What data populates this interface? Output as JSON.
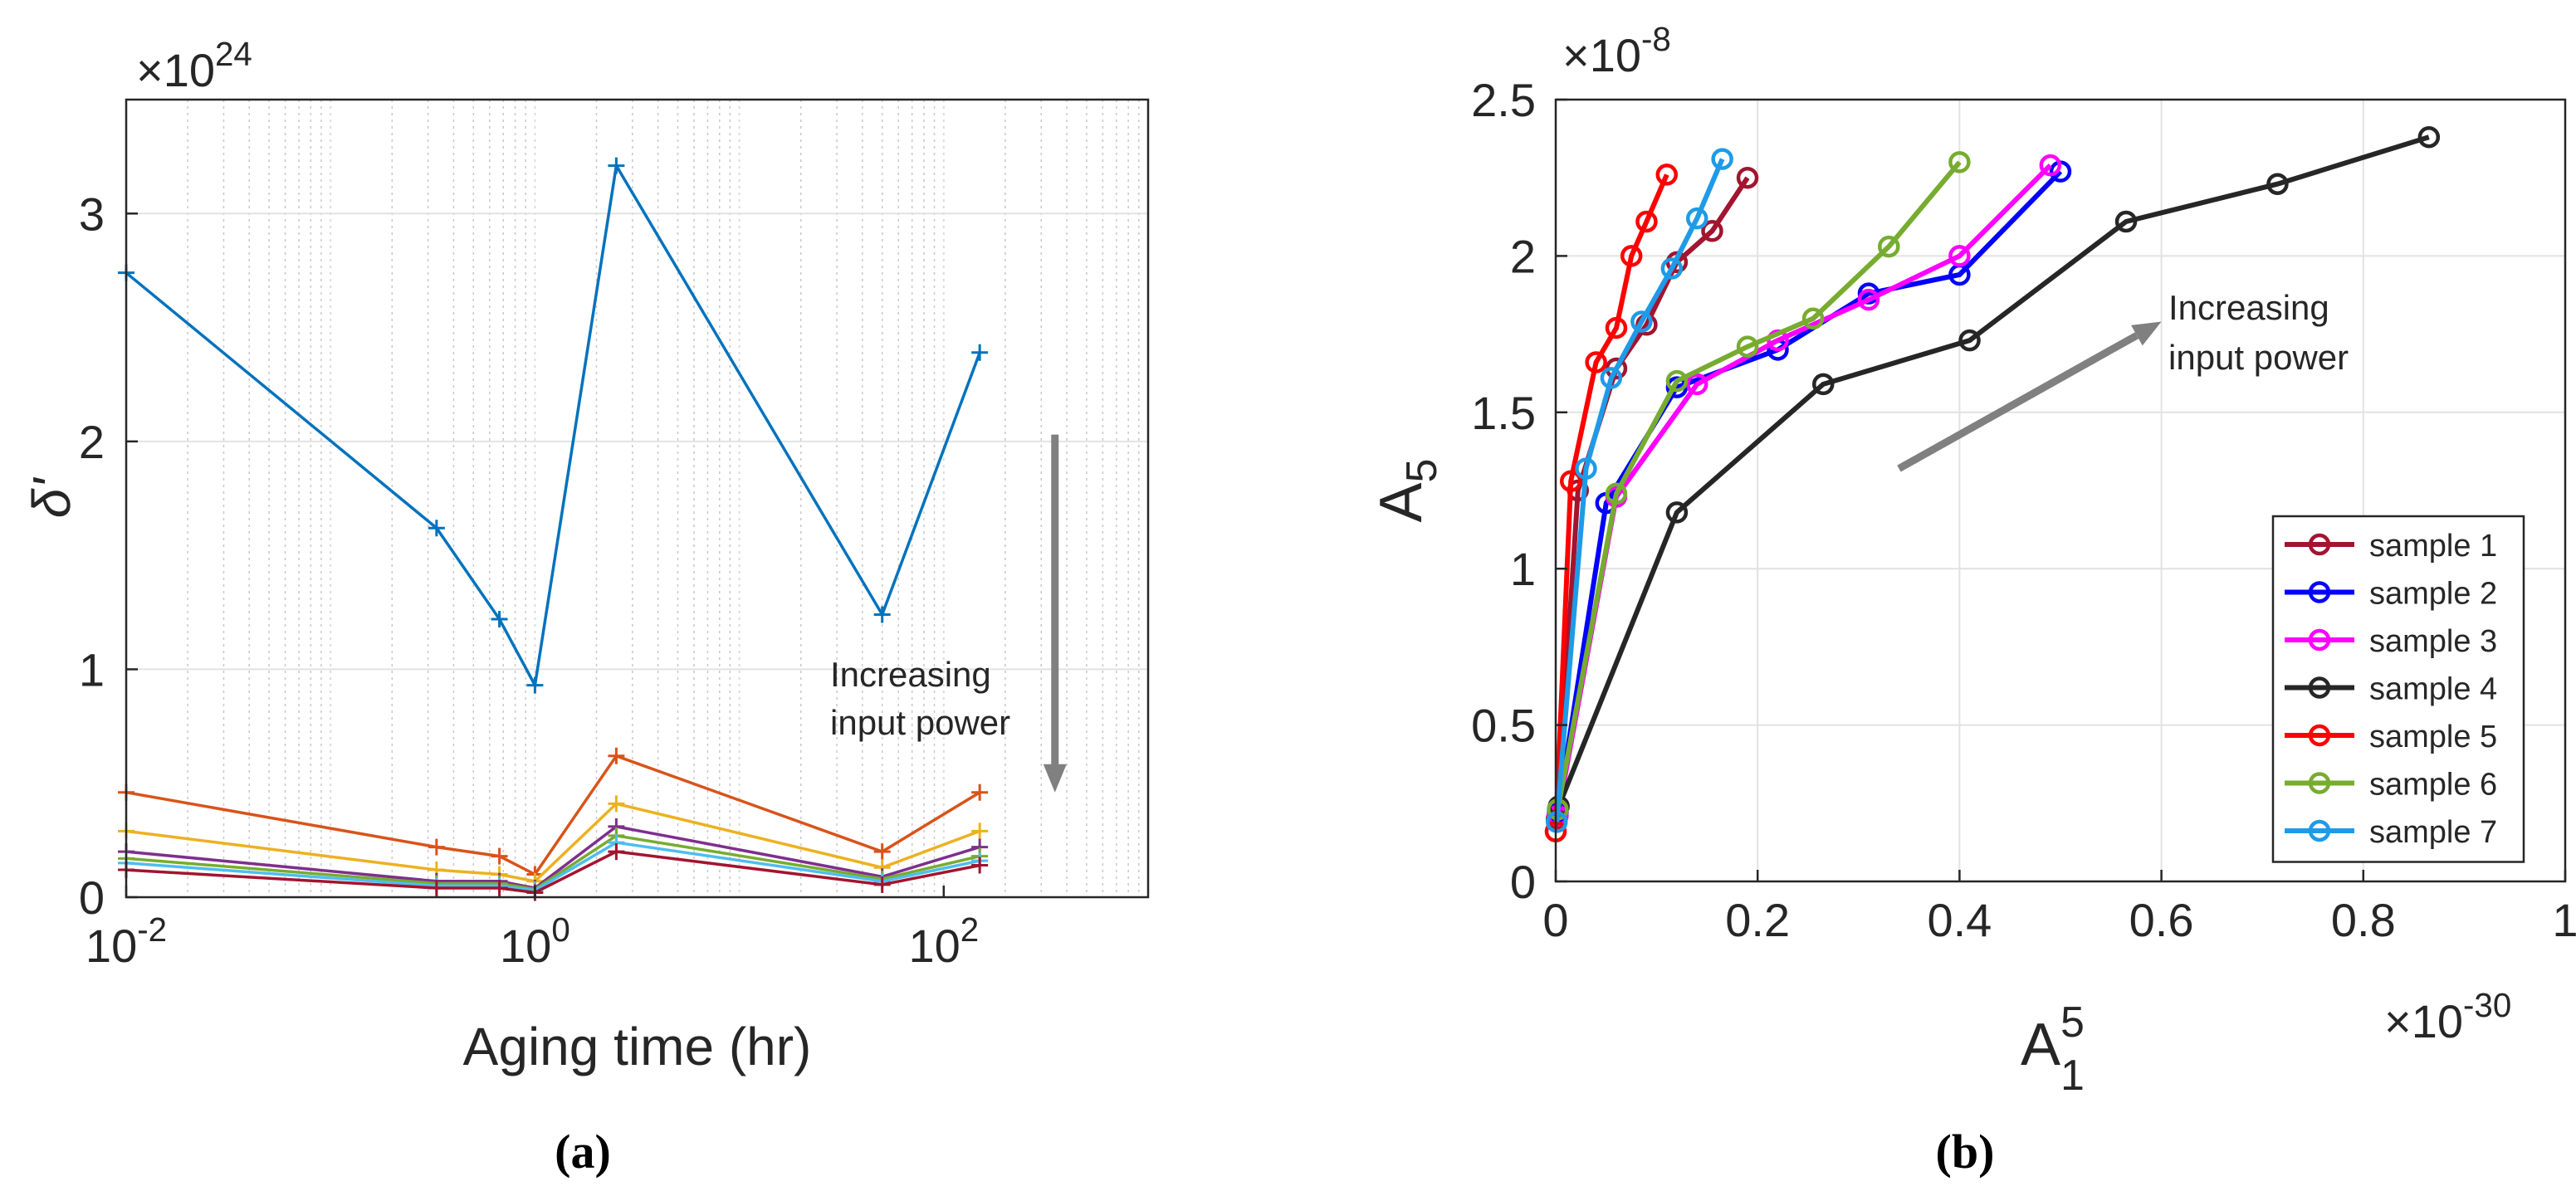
{
  "captions": {
    "a": "(a)",
    "b": "(b)"
  },
  "chart_data": [
    {
      "type": "line",
      "xscale": "log",
      "xlabel": "Aging time (hr)",
      "ylabel": "δ'",
      "y_exponent_label": "×10",
      "y_exponent": "24",
      "xlim": [
        0.01,
        1000
      ],
      "ylim": [
        0,
        3.5
      ],
      "grid": true,
      "xticks": [
        0.01,
        1,
        100
      ],
      "xtick_labels": [
        {
          "base": "10",
          "exp": "-2"
        },
        {
          "base": "10",
          "exp": "0"
        },
        {
          "base": "10",
          "exp": "2"
        }
      ],
      "yticks": [
        0,
        1,
        2,
        3
      ],
      "ytick_labels": [
        "0",
        "1",
        "2",
        "3"
      ],
      "x": [
        0.01,
        0.33,
        0.67,
        1,
        2.5,
        50,
        150
      ],
      "series": [
        {
          "color": "#0072BD",
          "values": [
            2.74,
            1.62,
            1.22,
            0.93,
            3.21,
            1.24,
            2.39
          ]
        },
        {
          "color": "#D95319",
          "values": [
            0.46,
            0.22,
            0.18,
            0.1,
            0.62,
            0.2,
            0.46
          ]
        },
        {
          "color": "#EDB120",
          "values": [
            0.29,
            0.12,
            0.1,
            0.07,
            0.41,
            0.13,
            0.29
          ]
        },
        {
          "color": "#7E2F8E",
          "values": [
            0.2,
            0.07,
            0.07,
            0.04,
            0.31,
            0.09,
            0.22
          ]
        },
        {
          "color": "#77AC30",
          "values": [
            0.17,
            0.06,
            0.06,
            0.035,
            0.27,
            0.08,
            0.18
          ]
        },
        {
          "color": "#4DBEEE",
          "values": [
            0.15,
            0.05,
            0.05,
            0.03,
            0.24,
            0.07,
            0.16
          ]
        },
        {
          "color": "#A2142F",
          "values": [
            0.12,
            0.04,
            0.04,
            0.02,
            0.2,
            0.055,
            0.14
          ]
        }
      ],
      "annotation": {
        "lines": [
          "Increasing",
          "input power"
        ],
        "arrow_color": "#808080",
        "arrow_x": 350,
        "arrow_from_y": 2.03,
        "arrow_to_y": 0.46
      }
    },
    {
      "type": "line",
      "xlabel_base": "A",
      "xlabel_sub": "1",
      "xlabel_sup": "5",
      "ylabel_base": "A",
      "ylabel_sub": "5",
      "x_exponent_label": "×10",
      "x_exponent": "-30",
      "y_exponent_label": "×10",
      "y_exponent": "-8",
      "xlim": [
        0,
        1
      ],
      "ylim": [
        0,
        2.5
      ],
      "grid": true,
      "xticks": [
        0,
        0.2,
        0.4,
        0.6,
        0.8,
        1
      ],
      "xtick_labels": [
        "0",
        "0.2",
        "0.4",
        "0.6",
        "0.8",
        "1"
      ],
      "yticks": [
        0,
        0.5,
        1,
        1.5,
        2,
        2.5
      ],
      "ytick_labels": [
        "0",
        "0.5",
        "1",
        "1.5",
        "2",
        "2.5"
      ],
      "series": [
        {
          "name": "sample 1",
          "color": "#A2142F",
          "x": [
            0.001,
            0.022,
            0.06,
            0.09,
            0.12,
            0.155,
            0.19
          ],
          "y": [
            0.2,
            1.25,
            1.64,
            1.78,
            1.98,
            2.08,
            2.25
          ]
        },
        {
          "name": "sample 2",
          "color": "#0000FF",
          "x": [
            0.002,
            0.05,
            0.12,
            0.22,
            0.31,
            0.4,
            0.5
          ],
          "y": [
            0.22,
            1.21,
            1.58,
            1.7,
            1.88,
            1.94,
            2.27
          ]
        },
        {
          "name": "sample 3",
          "color": "#FF00FF",
          "x": [
            0.002,
            0.06,
            0.14,
            0.22,
            0.31,
            0.4,
            0.49
          ],
          "y": [
            0.21,
            1.23,
            1.59,
            1.73,
            1.86,
            2.0,
            2.29
          ]
        },
        {
          "name": "sample 4",
          "color": "#262626",
          "x": [
            0.003,
            0.12,
            0.265,
            0.41,
            0.565,
            0.715,
            0.865
          ],
          "y": [
            0.24,
            1.18,
            1.59,
            1.73,
            2.11,
            2.23,
            2.38
          ]
        },
        {
          "name": "sample 5",
          "color": "#FF0000",
          "x": [
            0.0,
            0.015,
            0.04,
            0.06,
            0.075,
            0.09,
            0.11
          ],
          "y": [
            0.16,
            1.28,
            1.66,
            1.77,
            2.0,
            2.11,
            2.26
          ]
        },
        {
          "name": "sample 6",
          "color": "#77AC30",
          "x": [
            0.002,
            0.06,
            0.12,
            0.19,
            0.255,
            0.33,
            0.4
          ],
          "y": [
            0.23,
            1.24,
            1.6,
            1.71,
            1.8,
            2.03,
            2.3
          ]
        },
        {
          "name": "sample 7",
          "color": "#1E9BE8",
          "x": [
            0.001,
            0.03,
            0.055,
            0.085,
            0.115,
            0.14,
            0.165
          ],
          "y": [
            0.19,
            1.32,
            1.61,
            1.79,
            1.96,
            2.12,
            2.31
          ]
        }
      ],
      "legend_position": "right",
      "annotation": {
        "lines": [
          "Increasing",
          "input power"
        ],
        "arrow_color": "#808080",
        "arrow_from": [
          0.34,
          1.32
        ],
        "arrow_to": [
          0.6,
          1.79
        ]
      }
    }
  ]
}
